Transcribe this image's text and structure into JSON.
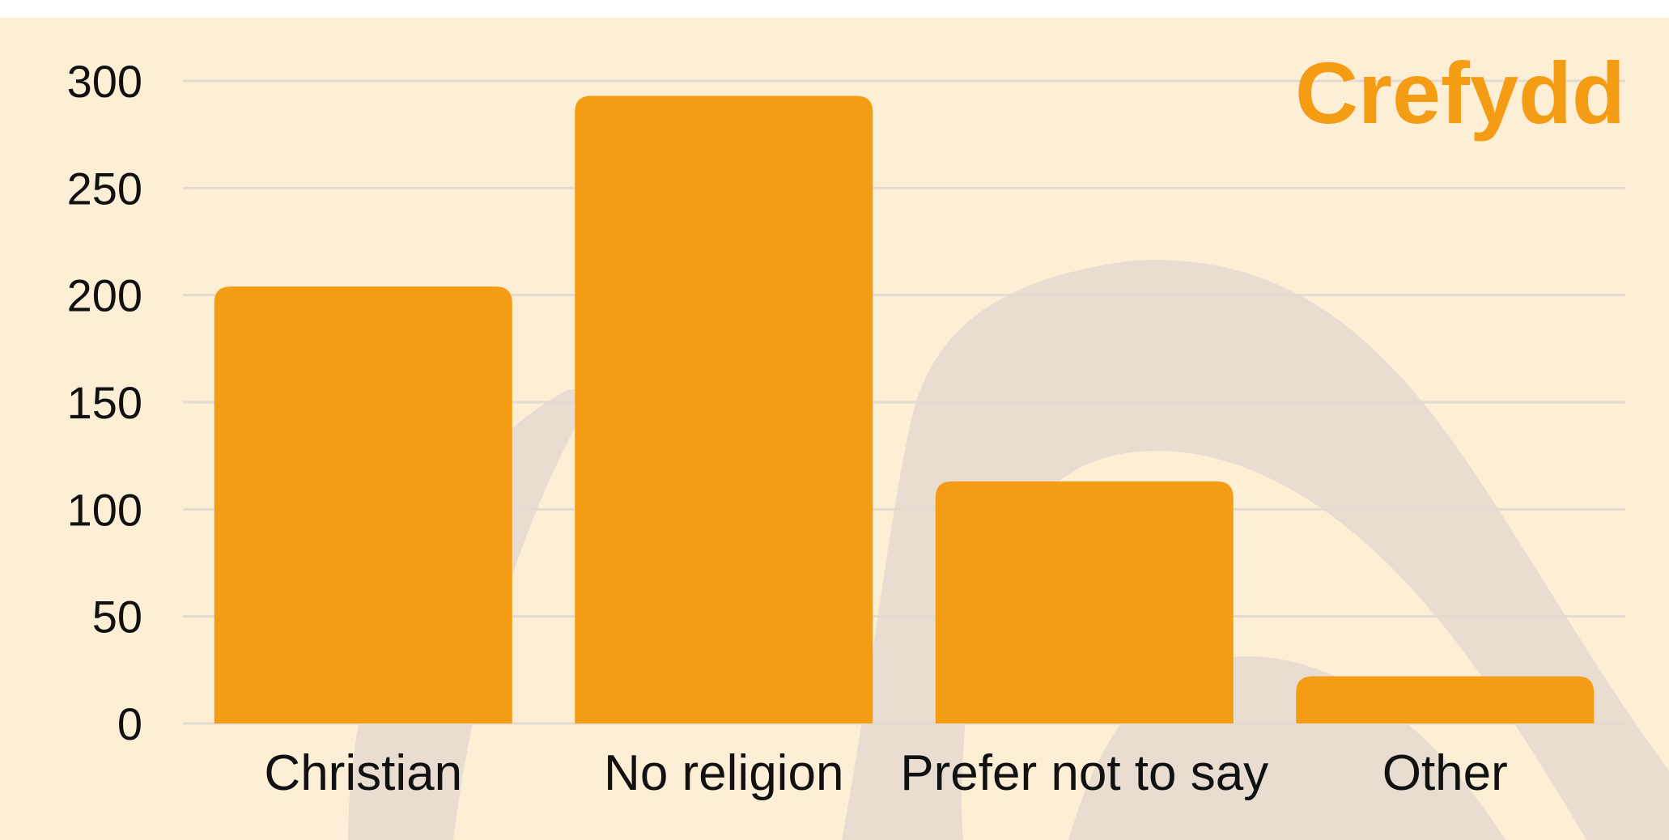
{
  "colors": {
    "background": "#fdeed6",
    "decoration": "#e8ddd0",
    "bar": "#f49c13",
    "title": "#f49c13",
    "grid": "#e3dbcf",
    "text": "#111111"
  },
  "chart_data": {
    "type": "bar",
    "title": "Crefydd",
    "xlabel": "",
    "ylabel": "",
    "categories": [
      "Christian",
      "No religion",
      "Prefer not to say",
      "Other"
    ],
    "values": [
      204,
      293,
      113,
      22
    ],
    "ylim": [
      0,
      300
    ],
    "yticks": [
      0,
      50,
      100,
      150,
      200,
      250,
      300
    ],
    "ytick_labels": [
      "0",
      "50",
      "100",
      "150",
      "200",
      "250",
      "300"
    ],
    "grid": true,
    "legend": "none"
  }
}
